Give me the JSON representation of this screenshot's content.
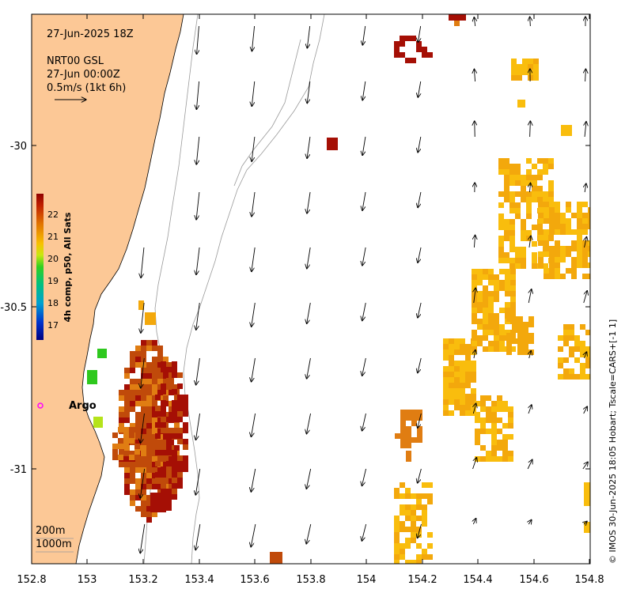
{
  "header": {
    "date": "27-Jun-2025 18Z",
    "product": "NRT00 GSL",
    "time": "27-Jun 00:00Z",
    "scale_label": "0.5m/s (1kt 6h)"
  },
  "axes": {
    "x_ticks": [
      "152.8",
      "153",
      "153.2",
      "153.4",
      "153.6",
      "153.8",
      "154",
      "154.2",
      "154.4",
      "154.6",
      "154.8"
    ],
    "y_ticks": [
      "-30",
      "-30.5",
      "-31"
    ]
  },
  "colorbar": {
    "label": "4h comp, p50, All Sats",
    "ticks": [
      "22",
      "21",
      "20",
      "19",
      "18",
      "17"
    ]
  },
  "marker": {
    "label": "Argo",
    "color": "#ff00ff"
  },
  "contours": {
    "label_200": "200m",
    "label_1000": "1000m"
  },
  "credit": "© IMOS 30-Jun-2025 18:05 Hobart; Tscale=CARS+[-1 1]",
  "colors": {
    "land": "#fcc896",
    "sst_dark": "#a50f05",
    "sst_mid": "#c04a0a",
    "sst_orange": "#e07d12",
    "sst_amber": "#f3a80c",
    "sst_yellow": "#f9bd0d",
    "sst_green": "#2ec81e",
    "sst_yellowgreen": "#b5e31b"
  },
  "chart_data": {
    "type": "heatmap",
    "xlim": [
      152.8,
      154.8
    ],
    "ylim": [
      -31.3,
      -29.6
    ]
  }
}
